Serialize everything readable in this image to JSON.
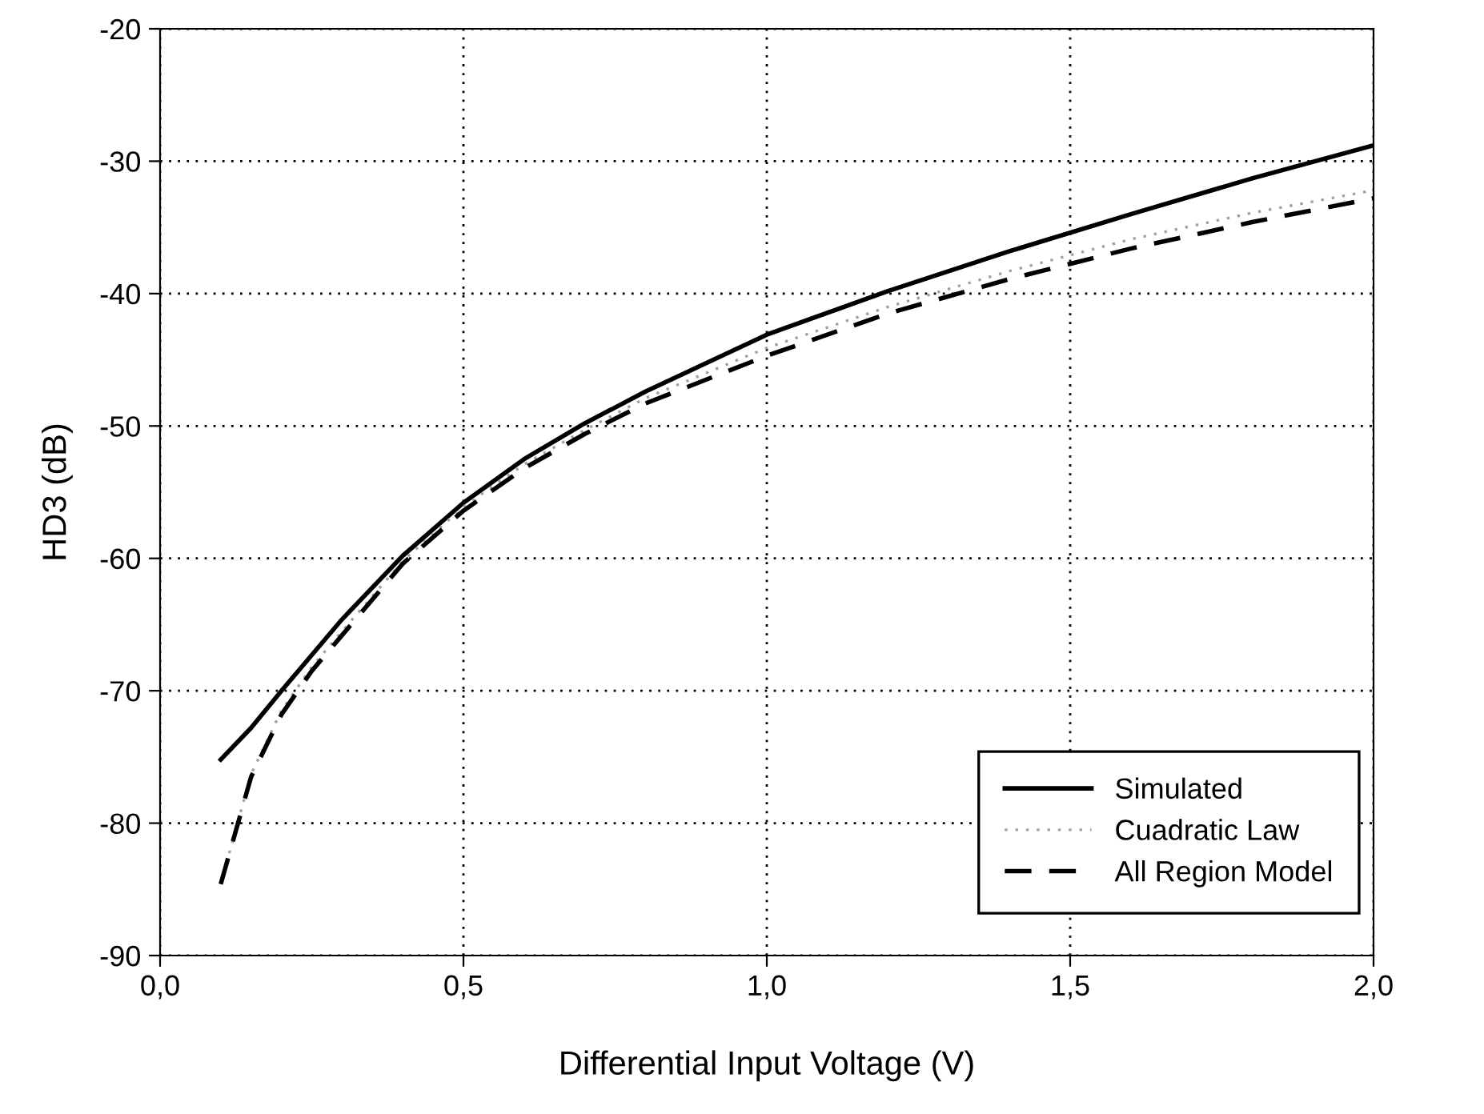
{
  "chart_data": {
    "type": "line",
    "xlabel": "Differential Input Voltage (V)",
    "ylabel": "HD3 (dB)",
    "x": [
      0.1,
      0.15,
      0.2,
      0.25,
      0.3,
      0.4,
      0.5,
      0.6,
      0.7,
      0.8,
      1.0,
      1.2,
      1.4,
      1.6,
      1.8,
      2.0
    ],
    "series": [
      {
        "name": "Simulated",
        "color": "#000000",
        "line_style": "solid",
        "values": [
          -75.2,
          -72.8,
          -70.0,
          -67.3,
          -64.6,
          -59.8,
          -55.8,
          -52.5,
          -49.8,
          -47.4,
          -43.1,
          -39.8,
          -36.8,
          -34.0,
          -31.3,
          -28.8
        ]
      },
      {
        "name": "Cuadratic Law",
        "color": "#a0a0a0",
        "line_style": "dotted",
        "values": [
          -84.6,
          -76.3,
          -71.5,
          -68.2,
          -65.5,
          -60.2,
          -56.1,
          -52.9,
          -50.3,
          -47.9,
          -44.1,
          -41.0,
          -38.3,
          -35.9,
          -33.9,
          -32.2
        ]
      },
      {
        "name": "All Region Model",
        "color": "#000000",
        "line_style": "dashed",
        "values": [
          -84.6,
          -76.5,
          -71.8,
          -68.5,
          -65.8,
          -60.4,
          -56.4,
          -53.2,
          -50.6,
          -48.3,
          -44.7,
          -41.5,
          -38.9,
          -36.6,
          -34.6,
          -32.8
        ]
      }
    ],
    "xlim": [
      0,
      2.0
    ],
    "xticks": [
      {
        "value": 0,
        "label": "0,0"
      },
      {
        "value": 0.5,
        "label": "0,5"
      },
      {
        "value": 1.0,
        "label": "1,0"
      },
      {
        "value": 1.5,
        "label": "1,5"
      },
      {
        "value": 2.0,
        "label": "2,0"
      }
    ],
    "ylim": [
      -90,
      -20
    ],
    "yticks": [
      -90,
      -80,
      -70,
      -60,
      -50,
      -40,
      -30,
      -20
    ],
    "grid": true,
    "legend": "bottom right",
    "marker": "none"
  }
}
